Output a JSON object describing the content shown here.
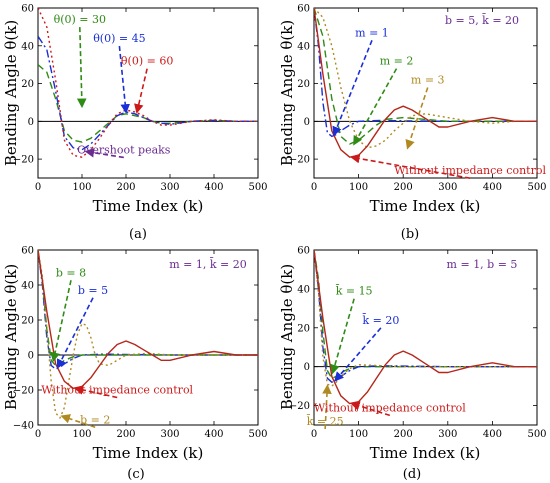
{
  "chart_data": [
    {
      "id": "a",
      "type": "line",
      "panel_label": "(a)",
      "xlabel": "Time Index (k)",
      "ylabel": "Bending Angle θ(k)",
      "xlim": [
        0,
        500
      ],
      "ylim": [
        -30,
        60
      ],
      "xticks": [
        0,
        100,
        200,
        300,
        400,
        500
      ],
      "xtick_labels": [
        "0",
        "100",
        "200",
        "300",
        "400",
        "500"
      ],
      "yticks": [
        -20,
        0,
        20,
        40,
        60
      ],
      "ytick_labels": [
        "−20",
        "0",
        "20",
        "40",
        "60"
      ],
      "params_text": "",
      "series": [
        {
          "name": "θ(0) = 30",
          "color": "#2e8b14",
          "dash": "7,4",
          "x": [
            0,
            20,
            40,
            60,
            80,
            100,
            120,
            140,
            160,
            180,
            200,
            220,
            240,
            260,
            280,
            300,
            350,
            400,
            450,
            500
          ],
          "y": [
            30,
            26,
            12,
            -5,
            -10,
            -11,
            -9,
            -5,
            -1,
            3,
            4,
            3,
            2,
            0,
            -1,
            -1,
            0,
            0.5,
            0,
            0
          ]
        },
        {
          "name": "θ(0) = 45",
          "color": "#1a2fd6",
          "dash": "8,3,2,3",
          "x": [
            0,
            20,
            40,
            60,
            80,
            100,
            120,
            140,
            160,
            180,
            200,
            220,
            240,
            260,
            280,
            300,
            350,
            400,
            450,
            500
          ],
          "y": [
            45,
            38,
            16,
            -8,
            -14,
            -15,
            -12,
            -7,
            -2,
            3,
            5,
            4,
            2,
            0,
            -1,
            -1.5,
            0,
            0.5,
            0,
            0
          ]
        },
        {
          "name": "θ(0) = 60",
          "color": "#cc1a1a",
          "dash": "2,3",
          "x": [
            0,
            20,
            40,
            60,
            80,
            100,
            120,
            140,
            160,
            180,
            200,
            220,
            240,
            260,
            280,
            300,
            350,
            400,
            450,
            500
          ],
          "y": [
            60,
            50,
            22,
            -10,
            -18,
            -19,
            -15,
            -9,
            -2,
            4,
            6,
            5,
            3,
            0,
            -2,
            -2,
            0,
            0.8,
            0,
            0
          ]
        }
      ],
      "annotations": [
        {
          "text": "θ(0) = 30",
          "color": "#2e8b14",
          "data": [
            95,
            52
          ],
          "target": [
            100,
            8
          ]
        },
        {
          "text": "θ(0) = 45",
          "color": "#1a2fd6",
          "data": [
            185,
            42
          ],
          "target": [
            200,
            5
          ]
        },
        {
          "text": "θ(0) = 60",
          "color": "#cc1a1a",
          "data": [
            248,
            30
          ],
          "target": [
            225,
            5
          ]
        },
        {
          "text": "Overshoot peaks",
          "color": "#6a2c91",
          "data": [
            195,
            -17
          ],
          "target": [
            110,
            -16
          ]
        }
      ]
    },
    {
      "id": "b",
      "type": "line",
      "panel_label": "(b)",
      "xlabel": "Time Index (k)",
      "ylabel": "Bending Angle θ(k)",
      "xlim": [
        0,
        500
      ],
      "ylim": [
        -30,
        60
      ],
      "xticks": [
        0,
        100,
        200,
        300,
        400,
        500
      ],
      "xtick_labels": [
        "0",
        "100",
        "200",
        "300",
        "400",
        "500"
      ],
      "yticks": [
        -20,
        0,
        20,
        40,
        60
      ],
      "ytick_labels": [
        "−20",
        "0",
        "20",
        "40",
        "60"
      ],
      "params_text": "b = 5,  k̄ = 20",
      "series": [
        {
          "name": "m = 1",
          "color": "#1a2fd6",
          "dash": "8,3,2,3",
          "x": [
            0,
            10,
            20,
            30,
            40,
            50,
            60,
            80,
            100,
            150,
            200,
            300,
            400,
            500
          ],
          "y": [
            60,
            40,
            10,
            -6,
            -8,
            -7,
            -5,
            -2,
            0,
            0.5,
            0.3,
            0,
            0,
            0
          ]
        },
        {
          "name": "m = 2",
          "color": "#2e8b14",
          "dash": "7,4",
          "x": [
            0,
            20,
            40,
            60,
            80,
            100,
            120,
            140,
            160,
            200,
            250,
            300,
            400,
            500
          ],
          "y": [
            60,
            45,
            12,
            -8,
            -12,
            -10,
            -6,
            -2,
            1,
            2,
            1,
            0,
            0,
            0
          ]
        },
        {
          "name": "m = 3",
          "color": "#b08a20",
          "dash": "2,3",
          "x": [
            0,
            20,
            40,
            60,
            80,
            100,
            120,
            140,
            160,
            180,
            200,
            220,
            250,
            300,
            350,
            400,
            450,
            500
          ],
          "y": [
            60,
            55,
            40,
            18,
            0,
            -10,
            -14,
            -13,
            -10,
            -5,
            -1,
            3,
            4,
            2,
            0,
            -1,
            0,
            0
          ]
        },
        {
          "name": "Without impedance control",
          "color": "#b5271a",
          "dash": "",
          "x": [
            0,
            20,
            40,
            60,
            80,
            100,
            120,
            140,
            160,
            180,
            200,
            220,
            240,
            260,
            280,
            300,
            350,
            400,
            450,
            500
          ],
          "y": [
            60,
            25,
            -5,
            -15,
            -19,
            -18,
            -13,
            -6,
            1,
            6,
            8,
            6,
            3,
            0,
            -3,
            -3,
            0,
            2,
            0,
            0
          ]
        }
      ],
      "annotations": [
        {
          "text": "m = 1",
          "color": "#1a2fd6",
          "data": [
            130,
            45
          ],
          "target": [
            45,
            -7
          ]
        },
        {
          "text": "m = 2",
          "color": "#2e8b14",
          "data": [
            185,
            30
          ],
          "target": [
            90,
            -12
          ]
        },
        {
          "text": "m = 3",
          "color": "#b08a20",
          "data": [
            255,
            20
          ],
          "target": [
            210,
            -14
          ]
        },
        {
          "text": "Without impedance control",
          "color": "#cc1a1a",
          "data": [
            350,
            -28
          ],
          "target": [
            85,
            -19
          ]
        }
      ]
    },
    {
      "id": "c",
      "type": "line",
      "panel_label": "(c)",
      "xlabel": "Time Index (k)",
      "ylabel": "Bending Angle θ(k)",
      "xlim": [
        0,
        500
      ],
      "ylim": [
        -40,
        60
      ],
      "xticks": [
        0,
        100,
        200,
        300,
        400,
        500
      ],
      "xtick_labels": [
        "0",
        "100",
        "200",
        "300",
        "400",
        "500"
      ],
      "yticks": [
        -40,
        -20,
        0,
        20,
        40,
        60
      ],
      "ytick_labels": [
        "−40",
        "−20",
        "0",
        "20",
        "40",
        "60"
      ],
      "params_text": "m = 1,  k̄ = 20",
      "series": [
        {
          "name": "b = 5",
          "color": "#1a2fd6",
          "dash": "8,3,2,3",
          "x": [
            0,
            10,
            20,
            30,
            40,
            50,
            60,
            80,
            100,
            150,
            200,
            300,
            400,
            500
          ],
          "y": [
            60,
            40,
            10,
            -6,
            -8,
            -7,
            -5,
            -2,
            0,
            0.5,
            0.3,
            0,
            0,
            0
          ]
        },
        {
          "name": "b = 8",
          "color": "#2e8b14",
          "dash": "7,4",
          "x": [
            0,
            10,
            20,
            30,
            40,
            50,
            60,
            80,
            100,
            150,
            200,
            300,
            400,
            500
          ],
          "y": [
            60,
            42,
            15,
            -3,
            -6,
            -5,
            -3,
            -1,
            0,
            0,
            0,
            0,
            0,
            0
          ]
        },
        {
          "name": "b = 2",
          "color": "#b08a20",
          "dash": "2,3",
          "x": [
            0,
            10,
            20,
            30,
            40,
            50,
            60,
            70,
            80,
            90,
            100,
            110,
            120,
            130,
            140,
            160,
            180,
            200,
            250,
            300,
            400,
            500
          ],
          "y": [
            60,
            45,
            15,
            -15,
            -33,
            -36,
            -30,
            -15,
            0,
            12,
            18,
            17,
            10,
            0,
            -5,
            -6,
            -3,
            0,
            1,
            0,
            0,
            0
          ]
        },
        {
          "name": "Without impedance control",
          "color": "#b5271a",
          "dash": "",
          "x": [
            0,
            20,
            40,
            60,
            80,
            100,
            120,
            140,
            160,
            180,
            200,
            220,
            240,
            260,
            280,
            300,
            350,
            400,
            450,
            500
          ],
          "y": [
            60,
            25,
            -5,
            -15,
            -19,
            -18,
            -13,
            -6,
            1,
            6,
            8,
            6,
            3,
            0,
            -3,
            -3,
            0,
            2,
            0,
            0
          ]
        }
      ],
      "annotations": [
        {
          "text": "b = 8",
          "color": "#2e8b14",
          "data": [
            75,
            45
          ],
          "target": [
            35,
            -3
          ]
        },
        {
          "text": "b = 5",
          "color": "#1a2fd6",
          "data": [
            125,
            35
          ],
          "target": [
            45,
            -7
          ]
        },
        {
          "text": "Without impedance control",
          "color": "#cc1a1a",
          "data": [
            180,
            -22
          ],
          "target": [
            85,
            -19
          ]
        },
        {
          "text": "b = 2",
          "color": "#b08a20",
          "data": [
            130,
            -39
          ],
          "target": [
            55,
            -35
          ]
        }
      ]
    },
    {
      "id": "d",
      "type": "line",
      "panel_label": "(d)",
      "xlabel": "Time Index (k)",
      "ylabel": "Bending Angle θ(k)",
      "xlim": [
        0,
        500
      ],
      "ylim": [
        -30,
        60
      ],
      "xticks": [
        0,
        100,
        200,
        300,
        400,
        500
      ],
      "xtick_labels": [
        "0",
        "100",
        "200",
        "300",
        "400",
        "500"
      ],
      "yticks": [
        -20,
        0,
        20,
        40,
        60
      ],
      "ytick_labels": [
        "−20",
        "0",
        "20",
        "40",
        "60"
      ],
      "params_text": "m = 1,  b = 5",
      "series": [
        {
          "name": "k̄ = 15",
          "color": "#2e8b14",
          "dash": "7,4",
          "x": [
            0,
            10,
            20,
            30,
            40,
            50,
            60,
            80,
            100,
            150,
            200,
            300,
            400,
            500
          ],
          "y": [
            60,
            45,
            18,
            -2,
            -6,
            -5,
            -3,
            -1,
            0,
            0,
            0,
            0,
            0,
            0
          ]
        },
        {
          "name": "k̄ = 20",
          "color": "#1a2fd6",
          "dash": "8,3,2,3",
          "x": [
            0,
            10,
            20,
            30,
            40,
            50,
            60,
            80,
            100,
            150,
            200,
            300,
            400,
            500
          ],
          "y": [
            60,
            40,
            10,
            -6,
            -8,
            -7,
            -5,
            -2,
            0,
            0.5,
            0.3,
            0,
            0,
            0
          ]
        },
        {
          "name": "k̄ = 25",
          "color": "#b08a20",
          "dash": "2,3",
          "x": [
            0,
            10,
            20,
            30,
            40,
            50,
            60,
            80,
            100,
            150,
            200,
            300,
            400,
            500
          ],
          "y": [
            60,
            38,
            5,
            -9,
            -10,
            -8,
            -5,
            -1,
            1,
            0.5,
            0,
            0,
            0,
            0
          ]
        },
        {
          "name": "Without impedance control",
          "color": "#b5271a",
          "dash": "",
          "x": [
            0,
            20,
            40,
            60,
            80,
            100,
            120,
            140,
            160,
            180,
            200,
            220,
            240,
            260,
            280,
            300,
            350,
            400,
            450,
            500
          ],
          "y": [
            60,
            25,
            -5,
            -15,
            -19,
            -18,
            -13,
            -6,
            1,
            6,
            8,
            6,
            3,
            0,
            -3,
            -3,
            0,
            2,
            0,
            0
          ]
        }
      ],
      "annotations": [
        {
          "text": "k̄ = 15",
          "color": "#2e8b14",
          "data": [
            90,
            37
          ],
          "target": [
            42,
            -3
          ]
        },
        {
          "text": "k̄ = 20",
          "color": "#1a2fd6",
          "data": [
            150,
            22
          ],
          "target": [
            48,
            -7
          ]
        },
        {
          "text": "k̄ = 25",
          "color": "#b08a20",
          "data": [
            25,
            -30
          ],
          "target": [
            30,
            -10
          ]
        },
        {
          "text": "Without impedance control",
          "color": "#cc1a1a",
          "data": [
            170,
            -23
          ],
          "target": [
            85,
            -19
          ]
        }
      ]
    }
  ]
}
